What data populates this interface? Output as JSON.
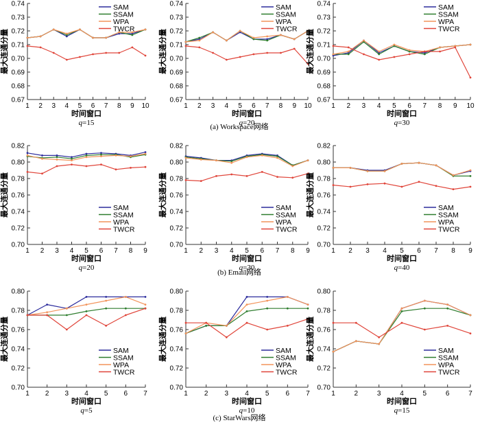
{
  "colors": {
    "SAM": "#2b2b9c",
    "SSAM": "#2e7d2e",
    "WPA": "#f2935a",
    "TWCR": "#e0453a",
    "axis": "#333333"
  },
  "y_label": "最大连通分量",
  "x_label": "时间窗口",
  "q_prefix": "q",
  "captions": [
    "(a)  Workspace网络",
    "(b)  Email网络",
    "(c)  StarWars网络"
  ],
  "chart_data": [
    {
      "type": "line",
      "row": 0,
      "col": 0,
      "q_value": "15",
      "x": [
        1,
        2,
        3,
        4,
        5,
        6,
        7,
        8,
        9,
        10
      ],
      "ylim": [
        0.67,
        0.74
      ],
      "yticks": [
        "0.67",
        "0.68",
        "0.69",
        "0.70",
        "0.71",
        "0.72",
        "0.73",
        "0.74"
      ],
      "legend": "top-right",
      "series": [
        {
          "name": "SAM",
          "values": [
            0.715,
            0.716,
            0.721,
            0.716,
            0.721,
            0.715,
            0.715,
            0.718,
            0.718,
            0.721
          ]
        },
        {
          "name": "SSAM",
          "values": [
            0.715,
            0.716,
            0.721,
            0.717,
            0.721,
            0.715,
            0.715,
            0.719,
            0.717,
            0.721
          ]
        },
        {
          "name": "WPA",
          "values": [
            0.715,
            0.716,
            0.721,
            0.718,
            0.721,
            0.715,
            0.715,
            0.719,
            0.719,
            0.721
          ]
        },
        {
          "name": "TWCR",
          "values": [
            0.709,
            0.708,
            0.704,
            0.699,
            0.701,
            0.703,
            0.704,
            0.704,
            0.708,
            0.702
          ]
        }
      ]
    },
    {
      "type": "line",
      "row": 0,
      "col": 1,
      "q_value": "20",
      "x": [
        1,
        2,
        3,
        4,
        5,
        6,
        7,
        8,
        9,
        10
      ],
      "ylim": [
        0.67,
        0.74
      ],
      "yticks": [
        "0.67",
        "0.68",
        "0.69",
        "0.70",
        "0.71",
        "0.72",
        "0.73",
        "0.74"
      ],
      "legend": "top-right",
      "series": [
        {
          "name": "SAM",
          "values": [
            0.712,
            0.714,
            0.719,
            0.713,
            0.719,
            0.714,
            0.714,
            0.717,
            0.714,
            0.72
          ]
        },
        {
          "name": "SSAM",
          "values": [
            0.712,
            0.715,
            0.719,
            0.713,
            0.72,
            0.714,
            0.713,
            0.717,
            0.714,
            0.72
          ]
        },
        {
          "name": "WPA",
          "values": [
            0.712,
            0.713,
            0.719,
            0.713,
            0.72,
            0.715,
            0.716,
            0.717,
            0.714,
            0.72
          ]
        },
        {
          "name": "TWCR",
          "values": [
            0.709,
            0.708,
            0.704,
            0.699,
            0.701,
            0.703,
            0.704,
            0.704,
            0.707,
            0.696
          ]
        }
      ]
    },
    {
      "type": "line",
      "row": 0,
      "col": 2,
      "q_value": "30",
      "x": [
        1,
        2,
        3,
        4,
        5,
        6,
        7,
        8,
        9,
        10
      ],
      "ylim": [
        0.67,
        0.74
      ],
      "yticks": [
        "0.67",
        "0.68",
        "0.69",
        "0.70",
        "0.71",
        "0.72",
        "0.73",
        "0.74"
      ],
      "legend": "top-right",
      "series": [
        {
          "name": "SAM",
          "values": [
            0.702,
            0.704,
            0.713,
            0.704,
            0.709,
            0.705,
            0.704,
            0.708,
            0.709,
            0.71
          ]
        },
        {
          "name": "SSAM",
          "values": [
            0.703,
            0.703,
            0.712,
            0.703,
            0.709,
            0.705,
            0.703,
            0.708,
            0.709,
            0.71
          ]
        },
        {
          "name": "WPA",
          "values": [
            0.703,
            0.705,
            0.713,
            0.705,
            0.71,
            0.706,
            0.705,
            0.708,
            0.709,
            0.71
          ]
        },
        {
          "name": "TWCR",
          "values": [
            0.709,
            0.708,
            0.703,
            0.699,
            0.701,
            0.703,
            0.705,
            0.705,
            0.708,
            0.686
          ]
        }
      ]
    },
    {
      "type": "line",
      "row": 1,
      "col": 0,
      "q_value": "20",
      "x": [
        1,
        2,
        3,
        4,
        5,
        6,
        7,
        8,
        9
      ],
      "ylim": [
        0.7,
        0.82
      ],
      "yticks": [
        "0.70",
        "0.72",
        "0.74",
        "0.76",
        "0.78",
        "0.80",
        "0.82"
      ],
      "legend": "bottom-right",
      "series": [
        {
          "name": "SAM",
          "values": [
            0.811,
            0.808,
            0.808,
            0.806,
            0.81,
            0.811,
            0.81,
            0.808,
            0.812
          ]
        },
        {
          "name": "SSAM",
          "values": [
            0.807,
            0.805,
            0.806,
            0.804,
            0.808,
            0.809,
            0.809,
            0.806,
            0.809
          ]
        },
        {
          "name": "WPA",
          "values": [
            0.808,
            0.804,
            0.803,
            0.802,
            0.806,
            0.807,
            0.808,
            0.807,
            0.81
          ]
        },
        {
          "name": "TWCR",
          "values": [
            0.788,
            0.786,
            0.795,
            0.797,
            0.795,
            0.797,
            0.791,
            0.793,
            0.794
          ]
        }
      ]
    },
    {
      "type": "line",
      "row": 1,
      "col": 1,
      "q_value": "30",
      "x": [
        1,
        2,
        3,
        4,
        5,
        6,
        7,
        8,
        9
      ],
      "ylim": [
        0.7,
        0.82
      ],
      "yticks": [
        "0.70",
        "0.72",
        "0.74",
        "0.76",
        "0.78",
        "0.80",
        "0.82"
      ],
      "legend": "bottom-right",
      "series": [
        {
          "name": "SAM",
          "values": [
            0.807,
            0.805,
            0.802,
            0.802,
            0.808,
            0.81,
            0.808,
            0.796,
            0.802
          ]
        },
        {
          "name": "SSAM",
          "values": [
            0.806,
            0.804,
            0.802,
            0.801,
            0.807,
            0.809,
            0.807,
            0.796,
            0.802
          ]
        },
        {
          "name": "WPA",
          "values": [
            0.805,
            0.803,
            0.802,
            0.799,
            0.806,
            0.808,
            0.805,
            0.795,
            0.802
          ]
        },
        {
          "name": "TWCR",
          "values": [
            0.778,
            0.777,
            0.783,
            0.785,
            0.783,
            0.788,
            0.782,
            0.781,
            0.786
          ]
        }
      ]
    },
    {
      "type": "line",
      "row": 1,
      "col": 2,
      "q_value": "40",
      "x": [
        1,
        2,
        3,
        4,
        5,
        6,
        7,
        8,
        9
      ],
      "ylim": [
        0.7,
        0.82
      ],
      "yticks": [
        "0.70",
        "0.72",
        "0.74",
        "0.76",
        "0.78",
        "0.80",
        "0.82"
      ],
      "legend": "bottom-right",
      "series": [
        {
          "name": "SAM",
          "values": [
            0.793,
            0.793,
            0.79,
            0.79,
            0.798,
            0.799,
            0.796,
            0.784,
            0.789
          ]
        },
        {
          "name": "SSAM",
          "values": [
            0.793,
            0.793,
            0.789,
            0.789,
            0.798,
            0.799,
            0.796,
            0.783,
            0.783
          ]
        },
        {
          "name": "WPA",
          "values": [
            0.793,
            0.793,
            0.789,
            0.789,
            0.798,
            0.799,
            0.796,
            0.784,
            0.79
          ]
        },
        {
          "name": "TWCR",
          "values": [
            0.772,
            0.77,
            0.773,
            0.774,
            0.77,
            0.776,
            0.771,
            0.767,
            0.77
          ]
        }
      ]
    },
    {
      "type": "line",
      "row": 2,
      "col": 0,
      "q_value": "5",
      "x": [
        1,
        2,
        3,
        4,
        5,
        6,
        7
      ],
      "ylim": [
        0.7,
        0.8
      ],
      "yticks": [
        "0.70",
        "0.72",
        "0.74",
        "0.76",
        "0.78",
        "0.80"
      ],
      "legend": "bottom-right",
      "series": [
        {
          "name": "SAM",
          "values": [
            0.775,
            0.786,
            0.782,
            0.794,
            0.794,
            0.794,
            0.794
          ]
        },
        {
          "name": "SSAM",
          "values": [
            0.775,
            0.775,
            0.775,
            0.779,
            0.782,
            0.782,
            0.782
          ]
        },
        {
          "name": "WPA",
          "values": [
            0.775,
            0.778,
            0.782,
            0.786,
            0.79,
            0.794,
            0.786
          ]
        },
        {
          "name": "TWCR",
          "values": [
            0.775,
            0.775,
            0.76,
            0.775,
            0.764,
            0.775,
            0.782
          ]
        }
      ]
    },
    {
      "type": "line",
      "row": 2,
      "col": 1,
      "q_value": "10",
      "x": [
        1,
        2,
        3,
        4,
        5,
        6,
        7
      ],
      "ylim": [
        0.7,
        0.8
      ],
      "yticks": [
        "0.70",
        "0.72",
        "0.74",
        "0.76",
        "0.78",
        "0.80"
      ],
      "legend": "bottom-right",
      "series": [
        {
          "name": "SAM",
          "values": [
            0.756,
            0.764,
            0.764,
            0.794,
            0.794,
            0.794,
            0.786
          ]
        },
        {
          "name": "SSAM",
          "values": [
            0.756,
            0.764,
            0.764,
            0.779,
            0.782,
            0.782,
            0.782
          ]
        },
        {
          "name": "WPA",
          "values": [
            0.756,
            0.767,
            0.764,
            0.786,
            0.79,
            0.794,
            0.786
          ]
        },
        {
          "name": "TWCR",
          "values": [
            0.767,
            0.767,
            0.752,
            0.767,
            0.76,
            0.764,
            0.771
          ]
        }
      ]
    },
    {
      "type": "line",
      "row": 2,
      "col": 2,
      "q_value": "15",
      "x": [
        1,
        2,
        3,
        4,
        5,
        6,
        7
      ],
      "ylim": [
        0.7,
        0.8
      ],
      "yticks": [
        "0.70",
        "0.72",
        "0.74",
        "0.76",
        "0.78",
        "0.80"
      ],
      "legend": "bottom-right",
      "series": [
        {
          "name": "SAM",
          "values": [
            0.737,
            0.748,
            0.745,
            0.782,
            0.79,
            0.786,
            0.775
          ]
        },
        {
          "name": "SSAM",
          "values": [
            0.737,
            0.748,
            0.745,
            0.779,
            0.782,
            0.782,
            0.775
          ]
        },
        {
          "name": "WPA",
          "values": [
            0.737,
            0.748,
            0.745,
            0.782,
            0.79,
            0.786,
            0.775
          ]
        },
        {
          "name": "TWCR",
          "values": [
            0.767,
            0.767,
            0.752,
            0.767,
            0.76,
            0.764,
            0.756
          ]
        }
      ]
    }
  ]
}
